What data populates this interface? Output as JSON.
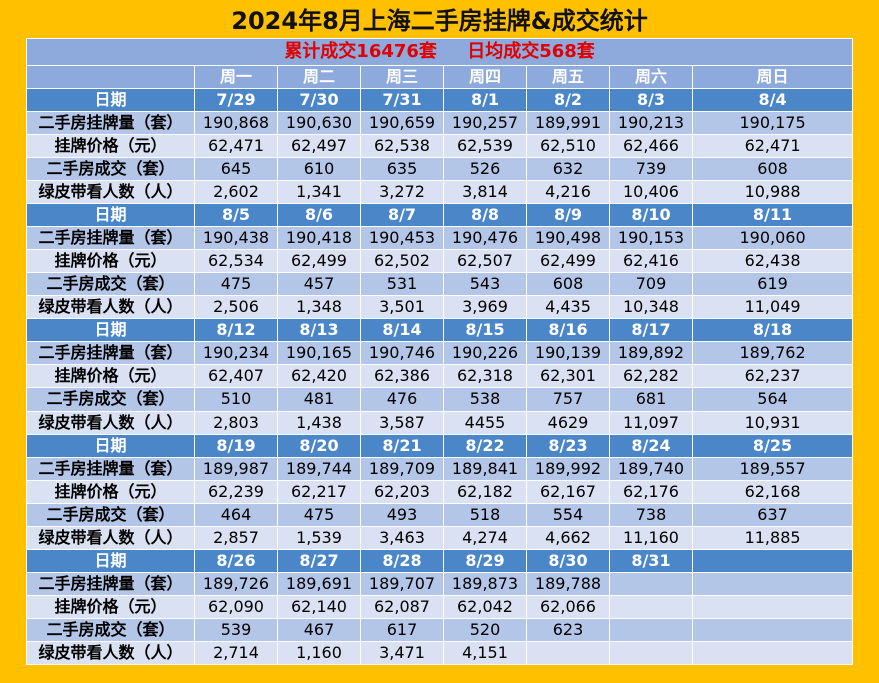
{
  "title": "2024年8月上海二手房挂牌&成交统计",
  "summary": {
    "total": "累计成交16476套",
    "daily_avg": "日均成交568套"
  },
  "weekdays": [
    "周一",
    "周二",
    "周三",
    "周四",
    "周五",
    "周六",
    "周日"
  ],
  "row_labels": {
    "date": "日期",
    "listing": "二手房挂牌量（套）",
    "price": "挂牌价格（元）",
    "deals": "二手房成交（套）",
    "viewers": "绿皮带看人数（人）"
  },
  "weeks": [
    {
      "dates": [
        "7/29",
        "7/30",
        "7/31",
        "8/1",
        "8/2",
        "8/3",
        "8/4"
      ],
      "listing": [
        "190,868",
        "190,630",
        "190,659",
        "190,257",
        "189,991",
        "190,213",
        "190,175"
      ],
      "price": [
        "62,471",
        "62,497",
        "62,538",
        "62,539",
        "62,510",
        "62,466",
        "62,471"
      ],
      "deals": [
        "645",
        "610",
        "635",
        "526",
        "632",
        "739",
        "608"
      ],
      "viewers": [
        "2,602",
        "1,341",
        "3,272",
        "3,814",
        "4,216",
        "10,406",
        "10,988"
      ]
    },
    {
      "dates": [
        "8/5",
        "8/6",
        "8/7",
        "8/8",
        "8/9",
        "8/10",
        "8/11"
      ],
      "listing": [
        "190,438",
        "190,418",
        "190,453",
        "190,476",
        "190,498",
        "190,153",
        "190,060"
      ],
      "price": [
        "62,534",
        "62,499",
        "62,502",
        "62,507",
        "62,499",
        "62,416",
        "62,438"
      ],
      "deals": [
        "475",
        "457",
        "531",
        "543",
        "608",
        "709",
        "619"
      ],
      "viewers": [
        "2,506",
        "1,348",
        "3,501",
        "3,969",
        "4,435",
        "10,348",
        "11,049"
      ]
    },
    {
      "dates": [
        "8/12",
        "8/13",
        "8/14",
        "8/15",
        "8/16",
        "8/17",
        "8/18"
      ],
      "listing": [
        "190,234",
        "190,165",
        "190,746",
        "190,226",
        "190,139",
        "189,892",
        "189,762"
      ],
      "price": [
        "62,407",
        "62,420",
        "62,386",
        "62,318",
        "62,301",
        "62,282",
        "62,237"
      ],
      "deals": [
        "510",
        "481",
        "476",
        "538",
        "757",
        "681",
        "564"
      ],
      "viewers": [
        "2,803",
        "1,438",
        "3,587",
        "4455",
        "4629",
        "11,097",
        "10,931"
      ]
    },
    {
      "dates": [
        "8/19",
        "8/20",
        "8/21",
        "8/22",
        "8/23",
        "8/24",
        "8/25"
      ],
      "listing": [
        "189,987",
        "189,744",
        "189,709",
        "189,841",
        "189,992",
        "189,740",
        "189,557"
      ],
      "price": [
        "62,239",
        "62,217",
        "62,203",
        "62,182",
        "62,167",
        "62,176",
        "62,168"
      ],
      "deals": [
        "464",
        "475",
        "493",
        "518",
        "554",
        "738",
        "637"
      ],
      "viewers": [
        "2,857",
        "1,539",
        "3,463",
        "4,274",
        "4,662",
        "11,160",
        "11,885"
      ]
    },
    {
      "dates": [
        "8/26",
        "8/27",
        "8/28",
        "8/29",
        "8/30",
        "8/31",
        ""
      ],
      "listing": [
        "189,726",
        "189,691",
        "189,707",
        "189,873",
        "189,788",
        "",
        ""
      ],
      "price": [
        "62,090",
        "62,140",
        "62,087",
        "62,042",
        "62,066",
        "",
        ""
      ],
      "deals": [
        "539",
        "467",
        "617",
        "520",
        "623",
        "",
        ""
      ],
      "viewers": [
        "2,714",
        "1,160",
        "3,471",
        "4,151",
        "",
        "",
        ""
      ]
    }
  ],
  "colors": {
    "background": "#FFC000",
    "date_row": "#4A86C8",
    "header_row": "#8EA9DB",
    "band_dark": "#B4C6E7",
    "band_light": "#D9E1F2",
    "summary_text": "#E00000"
  }
}
